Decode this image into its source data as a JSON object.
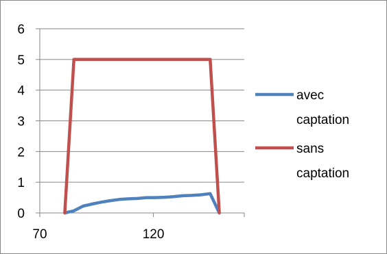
{
  "chart_data": {
    "type": "line",
    "title": "",
    "xlabel": "",
    "ylabel": "",
    "xlim": [
      70,
      160
    ],
    "ylim": [
      0,
      6
    ],
    "x_ticks": [
      {
        "value": 70,
        "label": "70"
      },
      {
        "value": 120,
        "label": "120"
      }
    ],
    "y_ticks": [
      {
        "value": 0,
        "label": "0"
      },
      {
        "value": 1,
        "label": "1"
      },
      {
        "value": 2,
        "label": "2"
      },
      {
        "value": 3,
        "label": "3"
      },
      {
        "value": 4,
        "label": "4"
      },
      {
        "value": 5,
        "label": "5"
      },
      {
        "value": 6,
        "label": "6"
      }
    ],
    "grid": "horizontal",
    "legend_placement": "right",
    "series": [
      {
        "name": "avec captation",
        "legend_lines": [
          "avec",
          "captation"
        ],
        "color": "#4F81BD",
        "points": [
          [
            81,
            0
          ],
          [
            85,
            0.07
          ],
          [
            89,
            0.22
          ],
          [
            93,
            0.29
          ],
          [
            97,
            0.35
          ],
          [
            101,
            0.4
          ],
          [
            105,
            0.44
          ],
          [
            109,
            0.46
          ],
          [
            113,
            0.47
          ],
          [
            117,
            0.5
          ],
          [
            121,
            0.5
          ],
          [
            125,
            0.51
          ],
          [
            129,
            0.53
          ],
          [
            133,
            0.56
          ],
          [
            137,
            0.57
          ],
          [
            141,
            0.59
          ],
          [
            145,
            0.63
          ],
          [
            149,
            0
          ]
        ]
      },
      {
        "name": "sans captation",
        "legend_lines": [
          "sans",
          "captation"
        ],
        "color": "#C0504D",
        "points": [
          [
            81,
            0
          ],
          [
            85,
            5
          ],
          [
            145,
            5
          ],
          [
            149,
            0
          ]
        ]
      }
    ]
  }
}
